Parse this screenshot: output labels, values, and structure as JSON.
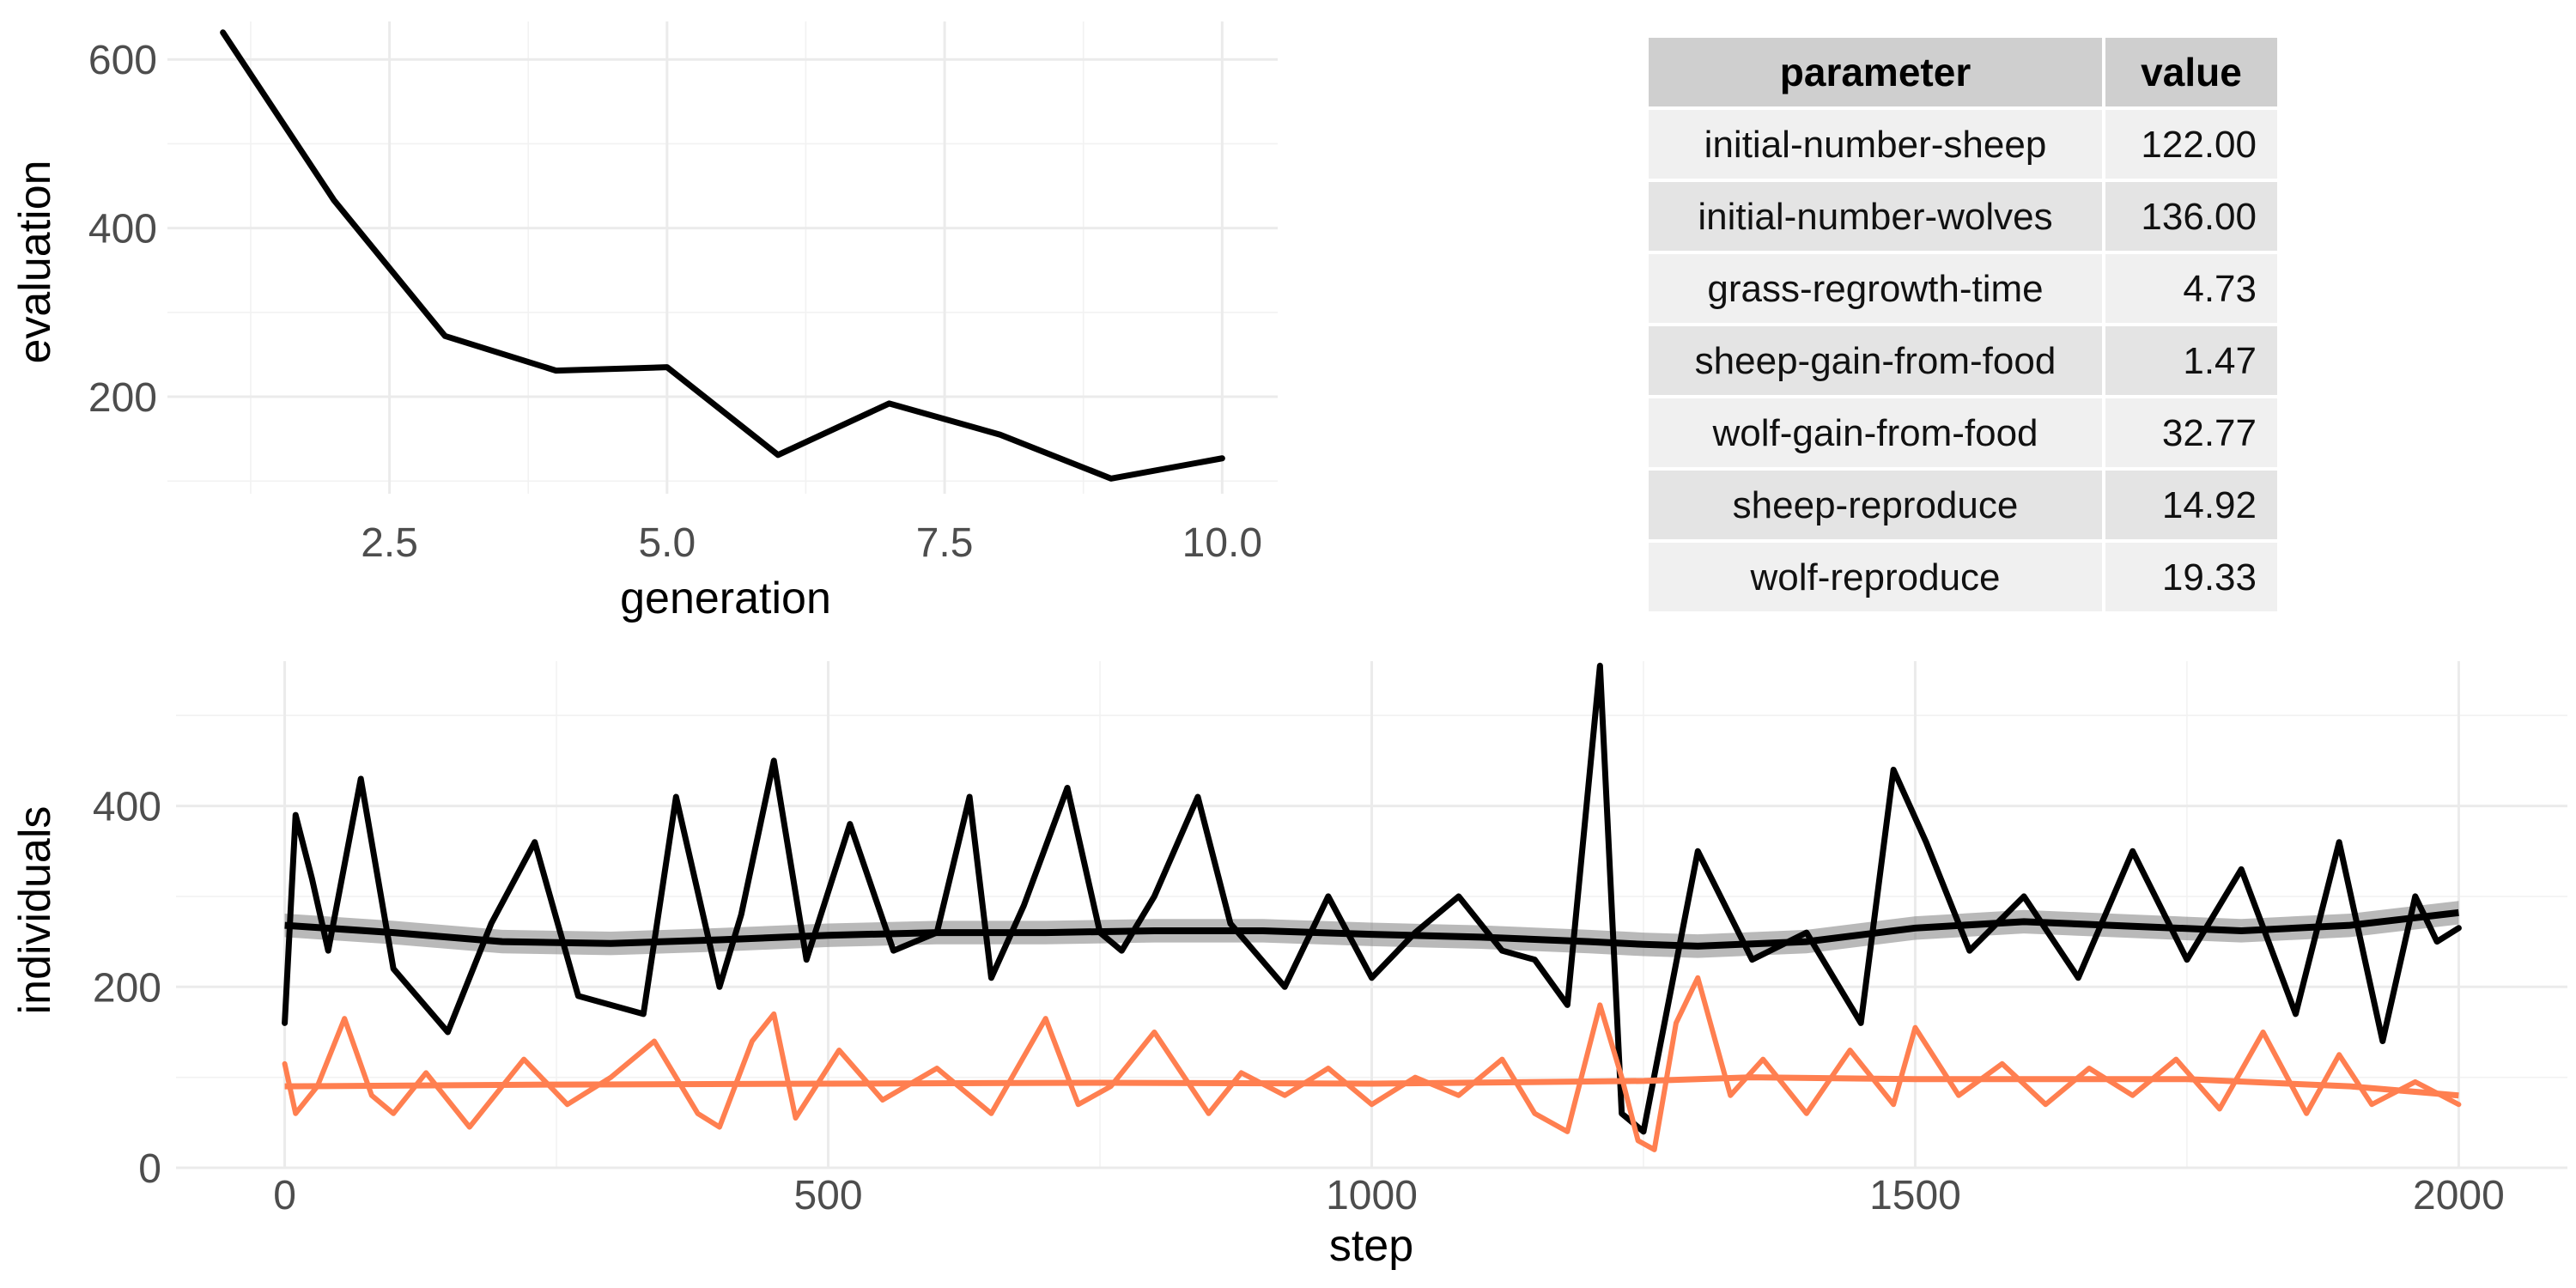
{
  "chart_data": [
    {
      "type": "line",
      "xlabel": "generation",
      "ylabel": "evaluation",
      "x_ticks": [
        "2.5",
        "5.0",
        "7.5",
        "10.0"
      ],
      "y_ticks": [
        "200",
        "400",
        "600"
      ],
      "xlim": [
        0.5,
        10.5
      ],
      "ylim": [
        85,
        645
      ],
      "grid": true,
      "series": [
        {
          "color": "#000000",
          "x": [
            1,
            2,
            3,
            4,
            5,
            6,
            7,
            8,
            9,
            10
          ],
          "y": [
            632,
            433,
            272,
            231,
            235,
            131,
            192,
            155,
            103,
            127
          ]
        }
      ]
    },
    {
      "type": "table",
      "columns": [
        "parameter",
        "value"
      ],
      "rows": [
        [
          "initial-number-sheep",
          "122.00"
        ],
        [
          "initial-number-wolves",
          "136.00"
        ],
        [
          "grass-regrowth-time",
          "4.73"
        ],
        [
          "sheep-gain-from-food",
          "1.47"
        ],
        [
          "wolf-gain-from-food",
          "32.77"
        ],
        [
          "sheep-reproduce",
          "14.92"
        ],
        [
          "wolf-reproduce",
          "19.33"
        ]
      ],
      "colors": {
        "header": "#cfcfcf",
        "row_odd": "#f0f0f0",
        "row_even": "#e4e4e4"
      }
    },
    {
      "type": "line",
      "xlabel": "step",
      "ylabel": "individuals",
      "x_ticks": [
        "0",
        "500",
        "1000",
        "1500",
        "2000"
      ],
      "y_ticks": [
        "0",
        "200",
        "400"
      ],
      "xlim": [
        -100,
        2100
      ],
      "ylim": [
        0,
        560
      ],
      "grid": true,
      "series": [
        {
          "color": "#000000",
          "x": [
            0,
            10,
            25,
            40,
            70,
            100,
            150,
            190,
            230,
            270,
            330,
            360,
            400,
            420,
            450,
            480,
            520,
            560,
            600,
            630,
            650,
            680,
            720,
            750,
            770,
            800,
            840,
            870,
            920,
            960,
            1000,
            1040,
            1080,
            1120,
            1150,
            1180,
            1210,
            1230,
            1250,
            1300,
            1350,
            1400,
            1450,
            1480,
            1510,
            1550,
            1600,
            1650,
            1700,
            1750,
            1800,
            1850,
            1890,
            1930,
            1960,
            1980,
            2000
          ],
          "y": [
            160,
            390,
            320,
            240,
            430,
            220,
            150,
            270,
            360,
            190,
            170,
            410,
            200,
            280,
            450,
            230,
            380,
            240,
            260,
            410,
            210,
            290,
            420,
            260,
            240,
            300,
            410,
            270,
            200,
            300,
            210,
            260,
            300,
            240,
            230,
            180,
            555,
            60,
            40,
            350,
            230,
            260,
            160,
            440,
            360,
            240,
            300,
            210,
            350,
            230,
            330,
            170,
            360,
            140,
            300,
            250,
            265
          ]
        },
        {
          "color": "#ff7f50",
          "x": [
            0,
            10,
            30,
            55,
            80,
            100,
            130,
            170,
            220,
            260,
            300,
            340,
            380,
            400,
            430,
            450,
            470,
            510,
            550,
            600,
            650,
            700,
            730,
            760,
            800,
            850,
            880,
            920,
            960,
            1000,
            1040,
            1080,
            1120,
            1150,
            1180,
            1210,
            1230,
            1245,
            1260,
            1280,
            1300,
            1330,
            1360,
            1400,
            1440,
            1480,
            1500,
            1540,
            1580,
            1620,
            1660,
            1700,
            1740,
            1780,
            1820,
            1860,
            1890,
            1920,
            1960,
            2000
          ],
          "y": [
            115,
            60,
            90,
            165,
            80,
            60,
            105,
            45,
            120,
            70,
            100,
            140,
            60,
            45,
            140,
            170,
            55,
            130,
            75,
            110,
            60,
            165,
            70,
            90,
            150,
            60,
            105,
            80,
            110,
            70,
            100,
            80,
            120,
            60,
            40,
            180,
            100,
            30,
            20,
            160,
            210,
            80,
            120,
            60,
            130,
            70,
            155,
            80,
            115,
            70,
            110,
            80,
            120,
            65,
            150,
            60,
            125,
            70,
            95,
            70
          ]
        }
      ],
      "smooth": [
        {
          "color": "#000000",
          "x": [
            0,
            100,
            200,
            300,
            400,
            500,
            600,
            700,
            800,
            900,
            1000,
            1100,
            1200,
            1250,
            1300,
            1400,
            1500,
            1600,
            1700,
            1800,
            1900,
            2000
          ],
          "y": [
            268,
            260,
            250,
            248,
            252,
            257,
            260,
            260,
            262,
            262,
            258,
            255,
            250,
            247,
            245,
            250,
            265,
            272,
            267,
            262,
            268,
            282
          ]
        },
        {
          "color": "#ff7f50",
          "x": [
            0,
            250,
            500,
            750,
            1000,
            1250,
            1350,
            1500,
            1750,
            1900,
            2000
          ],
          "y": [
            90,
            92,
            93,
            94,
            93,
            96,
            100,
            98,
            98,
            90,
            80
          ]
        }
      ]
    }
  ]
}
